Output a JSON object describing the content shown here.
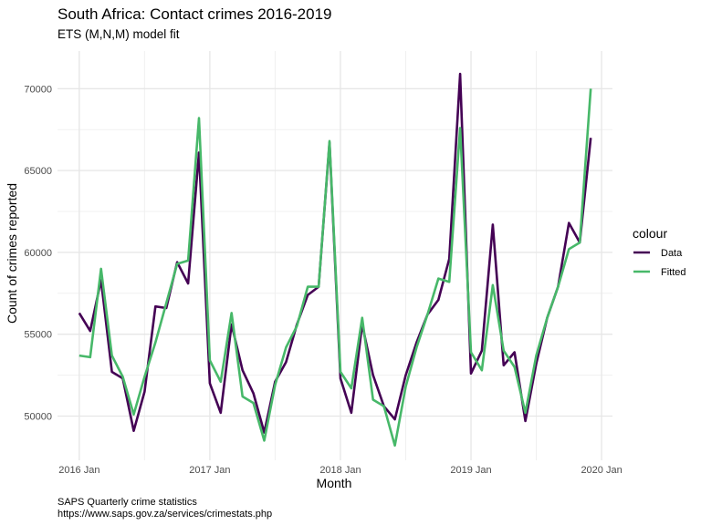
{
  "chart_data": {
    "type": "line",
    "title": "South Africa: Contact crimes 2016-2019",
    "subtitle": "ETS (M,N,M) model fit",
    "xlabel": "Month",
    "ylabel": "Count of crimes reported",
    "x_ticks": [
      "2016 Jan",
      "2017 Jan",
      "2018 Jan",
      "2019 Jan",
      "2020 Jan"
    ],
    "y_ticks": [
      50000,
      55000,
      60000,
      65000,
      70000
    ],
    "y_tick_labels": [
      "50000",
      "55000",
      "60000",
      "65000",
      "70000"
    ],
    "ylim": [
      47300,
      72300
    ],
    "xlim": [
      "2015-11",
      "2020-02"
    ],
    "grid": true,
    "legend": {
      "title": "colour",
      "position": "right"
    },
    "x": [
      "2016-01",
      "2016-02",
      "2016-03",
      "2016-04",
      "2016-05",
      "2016-06",
      "2016-07",
      "2016-08",
      "2016-09",
      "2016-10",
      "2016-11",
      "2016-12",
      "2017-01",
      "2017-02",
      "2017-03",
      "2017-04",
      "2017-05",
      "2017-06",
      "2017-07",
      "2017-08",
      "2017-09",
      "2017-10",
      "2017-11",
      "2017-12",
      "2018-01",
      "2018-02",
      "2018-03",
      "2018-04",
      "2018-05",
      "2018-06",
      "2018-07",
      "2018-08",
      "2018-09",
      "2018-10",
      "2018-11",
      "2018-12",
      "2019-01",
      "2019-02",
      "2019-03",
      "2019-04",
      "2019-05",
      "2019-06",
      "2019-07",
      "2019-08",
      "2019-09",
      "2019-10",
      "2019-11",
      "2019-12"
    ],
    "series": [
      {
        "name": "Data",
        "color": "#440154",
        "values": [
          56300,
          55200,
          58300,
          52700,
          52300,
          49100,
          51500,
          56700,
          56600,
          59400,
          58100,
          66100,
          52000,
          50200,
          55600,
          52800,
          51400,
          49000,
          52100,
          53300,
          55600,
          57400,
          57900,
          66700,
          52300,
          50200,
          55600,
          52500,
          50600,
          49800,
          52500,
          54500,
          56200,
          57100,
          59600,
          70900,
          52600,
          54000,
          61700,
          53100,
          53900,
          49700,
          53200,
          56000,
          57900,
          61800,
          60600,
          67000
        ]
      },
      {
        "name": "Fitted",
        "color": "#47b869",
        "values": [
          53700,
          53600,
          59000,
          53700,
          52400,
          50100,
          52400,
          54500,
          56900,
          59300,
          59500,
          68200,
          53400,
          52100,
          56300,
          51200,
          50800,
          48500,
          51900,
          54200,
          55500,
          57900,
          57900,
          66800,
          52700,
          51700,
          56000,
          51000,
          50600,
          48200,
          51800,
          54200,
          56200,
          58400,
          58200,
          67600,
          53900,
          52800,
          58000,
          54000,
          53000,
          50200,
          53700,
          56000,
          57900,
          60200,
          60600,
          70000
        ]
      }
    ]
  },
  "caption": {
    "line1": "SAPS Quarterly crime statistics",
    "line2": "https://www.saps.gov.za/services/crimestats.php"
  }
}
